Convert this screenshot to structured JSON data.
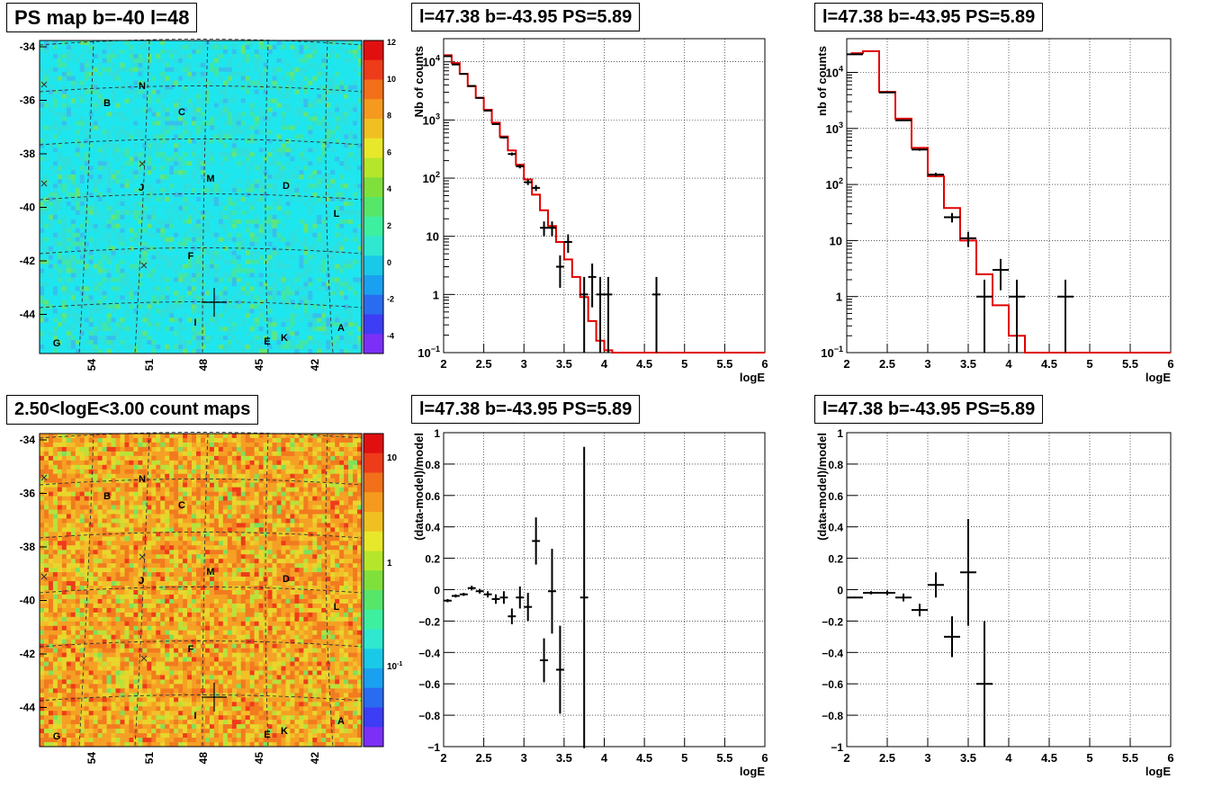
{
  "panels": {
    "ps_map": {
      "title": "PS map b=-40 l=48"
    },
    "count_map": {
      "title": "2.50<logE<3.00 count maps"
    },
    "spec1": {
      "title": "l=47.38 b=-43.95 PS=5.89"
    },
    "spec2": {
      "title": "l=47.38 b=-43.95 PS=5.89"
    },
    "res1": {
      "title": "l=47.38 b=-43.95 PS=5.89"
    },
    "res2": {
      "title": "l=47.38 b=-43.95 PS=5.89"
    }
  },
  "chart_data": [
    {
      "type": "heatmap",
      "id": "ps_map",
      "title": "PS map b=-40 l=48",
      "y_ticks": [
        "-34",
        "-36",
        "-38",
        "-40",
        "-42",
        "-44"
      ],
      "x_ticks": [
        "54",
        "51",
        "48",
        "45",
        "42"
      ],
      "colorbar_ticks": [
        "12",
        "10",
        "8",
        "6",
        "4",
        "2",
        "0",
        "-2",
        "-4"
      ],
      "zlim": [
        -5,
        12
      ],
      "labels": [
        "N",
        "B",
        "C",
        "J",
        "M",
        "D",
        "L",
        "F",
        "I",
        "A",
        "E",
        "K",
        "G"
      ]
    },
    {
      "type": "heatmap",
      "id": "count_map",
      "title": "2.50<logE<3.00 count maps",
      "y_ticks": [
        "-34",
        "-36",
        "-38",
        "-40",
        "-42",
        "-44"
      ],
      "x_ticks": [
        "54",
        "51",
        "48",
        "45",
        "42"
      ],
      "colorbar_ticks": [
        "10",
        "1",
        "10-1"
      ],
      "z_scale": "log",
      "labels": [
        "N",
        "B",
        "C",
        "J",
        "M",
        "D",
        "L",
        "F",
        "I",
        "A",
        "E",
        "K",
        "G"
      ]
    },
    {
      "type": "line",
      "id": "spec1",
      "title": "l=47.38 b=-43.95 PS=5.89",
      "xlabel": "logE",
      "ylabel": "Nb of counts",
      "y_scale": "log",
      "xlim": [
        2,
        6
      ],
      "ylim": [
        0.1,
        25000
      ],
      "x_ticks": [
        "2",
        "2.5",
        "3",
        "3.5",
        "4",
        "4.5",
        "5",
        "5.5",
        "6"
      ],
      "y_ticks": [
        "10−1",
        "1",
        "10",
        "10²",
        "10³",
        "10⁴"
      ],
      "grid": true,
      "model_step": {
        "edges": [
          2,
          2.1,
          2.2,
          2.3,
          2.4,
          2.5,
          2.6,
          2.7,
          2.8,
          2.9,
          3.0,
          3.1,
          3.2,
          3.3,
          3.4,
          3.5,
          3.6,
          3.7,
          3.8,
          3.9,
          4.0,
          4.1,
          4.2,
          6.0
        ],
        "values": [
          13000,
          9500,
          6200,
          3800,
          2400,
          1500,
          900,
          520,
          300,
          170,
          95,
          52,
          28,
          15,
          8,
          4,
          2,
          0.9,
          0.35,
          0.16,
          0.11,
          0.1,
          0.1
        ]
      },
      "points": [
        {
          "x": 2.05,
          "y": 12500,
          "xerr": 0.05,
          "ylo": 12300,
          "yhi": 12700
        },
        {
          "x": 2.15,
          "y": 9000,
          "xerr": 0.05,
          "ylo": 8850,
          "yhi": 9150
        },
        {
          "x": 2.25,
          "y": 6200,
          "xerr": 0.05,
          "ylo": 6100,
          "yhi": 6300
        },
        {
          "x": 2.35,
          "y": 3850,
          "xerr": 0.05,
          "ylo": 3790,
          "yhi": 3910
        },
        {
          "x": 2.45,
          "y": 2400,
          "xerr": 0.05,
          "ylo": 2350,
          "yhi": 2450
        },
        {
          "x": 2.55,
          "y": 1450,
          "xerr": 0.05,
          "ylo": 1410,
          "yhi": 1490
        },
        {
          "x": 2.65,
          "y": 850,
          "xerr": 0.05,
          "ylo": 820,
          "yhi": 880
        },
        {
          "x": 2.75,
          "y": 500,
          "xerr": 0.05,
          "ylo": 478,
          "yhi": 522
        },
        {
          "x": 2.85,
          "y": 260,
          "xerr": 0.05,
          "ylo": 244,
          "yhi": 276
        },
        {
          "x": 2.95,
          "y": 160,
          "xerr": 0.05,
          "ylo": 147,
          "yhi": 173
        },
        {
          "x": 3.05,
          "y": 85,
          "xerr": 0.05,
          "ylo": 76,
          "yhi": 94
        },
        {
          "x": 3.15,
          "y": 68,
          "xerr": 0.05,
          "ylo": 60,
          "yhi": 76
        },
        {
          "x": 3.25,
          "y": 14,
          "xerr": 0.05,
          "ylo": 10,
          "yhi": 18
        },
        {
          "x": 3.35,
          "y": 14,
          "xerr": 0.05,
          "ylo": 10,
          "yhi": 18
        },
        {
          "x": 3.45,
          "y": 3,
          "xerr": 0.05,
          "ylo": 1.3,
          "yhi": 4.7
        },
        {
          "x": 3.55,
          "y": 8,
          "xerr": 0.05,
          "ylo": 5.2,
          "yhi": 10.8
        },
        {
          "x": 3.75,
          "y": 1,
          "xerr": 0.05,
          "ylo": 0.1,
          "yhi": 2
        },
        {
          "x": 3.85,
          "y": 2,
          "xerr": 0.05,
          "ylo": 0.6,
          "yhi": 3.4
        },
        {
          "x": 3.95,
          "y": 1,
          "xerr": 0.05,
          "ylo": 0.1,
          "yhi": 2
        },
        {
          "x": 4.05,
          "y": 1,
          "xerr": 0.05,
          "ylo": 0.1,
          "yhi": 2
        },
        {
          "x": 4.65,
          "y": 1,
          "xerr": 0.05,
          "ylo": 0.1,
          "yhi": 2
        }
      ]
    },
    {
      "type": "line",
      "id": "spec2",
      "title": "l=47.38 b=-43.95 PS=5.89",
      "xlabel": "logE",
      "ylabel": "nb of counts",
      "y_scale": "log",
      "xlim": [
        2,
        6
      ],
      "ylim": [
        0.1,
        40000
      ],
      "x_ticks": [
        "2",
        "2.5",
        "3",
        "3.5",
        "4",
        "4.5",
        "5",
        "5.5",
        "6"
      ],
      "y_ticks": [
        "10−1",
        "1",
        "10",
        "10²",
        "10³",
        "10⁴"
      ],
      "grid": true,
      "model_step": {
        "edges": [
          2.05,
          2.2,
          2.4,
          2.6,
          2.8,
          3.0,
          3.2,
          3.4,
          3.6,
          3.8,
          4.0,
          4.2,
          6.0
        ],
        "values": [
          22000,
          24000,
          4500,
          1500,
          450,
          140,
          38,
          10,
          2.5,
          0.7,
          0.2,
          0.1
        ]
      },
      "points": [
        {
          "x": 2.1,
          "y": 21000,
          "xerr": 0.1,
          "ylo": 20800,
          "yhi": 21200
        },
        {
          "x": 2.5,
          "y": 4400,
          "xerr": 0.1,
          "ylo": 4330,
          "yhi": 4470
        },
        {
          "x": 2.7,
          "y": 1400,
          "xerr": 0.1,
          "ylo": 1360,
          "yhi": 1440
        },
        {
          "x": 2.9,
          "y": 420,
          "xerr": 0.1,
          "ylo": 400,
          "yhi": 440
        },
        {
          "x": 3.1,
          "y": 150,
          "xerr": 0.1,
          "ylo": 138,
          "yhi": 162
        },
        {
          "x": 3.3,
          "y": 26,
          "xerr": 0.1,
          "ylo": 21,
          "yhi": 31
        },
        {
          "x": 3.5,
          "y": 11,
          "xerr": 0.1,
          "ylo": 7.7,
          "yhi": 14.3
        },
        {
          "x": 3.7,
          "y": 1,
          "xerr": 0.1,
          "ylo": 0.1,
          "yhi": 2
        },
        {
          "x": 3.9,
          "y": 3,
          "xerr": 0.1,
          "ylo": 1.3,
          "yhi": 4.7
        },
        {
          "x": 4.1,
          "y": 1,
          "xerr": 0.1,
          "ylo": 0.1,
          "yhi": 2
        },
        {
          "x": 4.7,
          "y": 1,
          "xerr": 0.1,
          "ylo": 0.1,
          "yhi": 2
        }
      ]
    },
    {
      "type": "scatter",
      "id": "res1",
      "title": "l=47.38 b=-43.95 PS=5.89",
      "xlabel": "logE",
      "ylabel": "(data-model)/model",
      "xlim": [
        2,
        6
      ],
      "ylim": [
        -1,
        1
      ],
      "x_ticks": [
        "2",
        "2.5",
        "3",
        "3.5",
        "4",
        "4.5",
        "5",
        "5.5",
        "6"
      ],
      "y_ticks": [
        "−1",
        "−0.8",
        "−0.6",
        "−0.4",
        "−0.2",
        "0",
        "0.2",
        "0.4",
        "0.6",
        "0.8",
        "1"
      ],
      "grid": true,
      "points": [
        {
          "x": 2.05,
          "y": -0.07,
          "xerr": 0.05,
          "yerr": 0.01
        },
        {
          "x": 2.15,
          "y": -0.04,
          "xerr": 0.05,
          "yerr": 0.01
        },
        {
          "x": 2.25,
          "y": -0.03,
          "xerr": 0.05,
          "yerr": 0.01
        },
        {
          "x": 2.35,
          "y": 0.01,
          "xerr": 0.05,
          "yerr": 0.015
        },
        {
          "x": 2.45,
          "y": -0.01,
          "xerr": 0.05,
          "yerr": 0.015
        },
        {
          "x": 2.55,
          "y": -0.03,
          "xerr": 0.05,
          "yerr": 0.02
        },
        {
          "x": 2.65,
          "y": -0.06,
          "xerr": 0.05,
          "yerr": 0.03
        },
        {
          "x": 2.75,
          "y": -0.05,
          "xerr": 0.05,
          "yerr": 0.04
        },
        {
          "x": 2.85,
          "y": -0.17,
          "xerr": 0.05,
          "yerr": 0.05
        },
        {
          "x": 2.95,
          "y": -0.05,
          "xerr": 0.05,
          "yerr": 0.07
        },
        {
          "x": 3.05,
          "y": -0.11,
          "xerr": 0.05,
          "yerr": 0.09
        },
        {
          "x": 3.15,
          "y": 0.31,
          "xerr": 0.05,
          "yerr": 0.15
        },
        {
          "x": 3.25,
          "y": -0.45,
          "xerr": 0.05,
          "yerr": 0.14
        },
        {
          "x": 3.35,
          "y": -0.01,
          "xerr": 0.05,
          "yerr": 0.27
        },
        {
          "x": 3.45,
          "y": -0.51,
          "xerr": 0.05,
          "yerr": 0.28
        },
        {
          "x": 3.75,
          "y": -0.05,
          "xerr": 0.05,
          "yerr": 0.96
        }
      ]
    },
    {
      "type": "scatter",
      "id": "res2",
      "title": "l=47.38 b=-43.95 PS=5.89",
      "xlabel": "logE",
      "ylabel": "(data-model)/model",
      "xlim": [
        2,
        6
      ],
      "ylim": [
        -1,
        1
      ],
      "x_ticks": [
        "2",
        "2.5",
        "3",
        "3.5",
        "4",
        "4.5",
        "5",
        "5.5",
        "6"
      ],
      "y_ticks": [
        "−1",
        "−0.8",
        "−0.6",
        "−0.4",
        "−0.2",
        "0",
        "0.2",
        "0.4",
        "0.6",
        "0.8",
        "1"
      ],
      "grid": true,
      "points": [
        {
          "x": 2.1,
          "y": -0.05,
          "xerr": 0.1,
          "yerr": 0.005
        },
        {
          "x": 2.3,
          "y": -0.02,
          "xerr": 0.1,
          "yerr": 0.01
        },
        {
          "x": 2.5,
          "y": -0.02,
          "xerr": 0.1,
          "yerr": 0.015
        },
        {
          "x": 2.7,
          "y": -0.05,
          "xerr": 0.1,
          "yerr": 0.025
        },
        {
          "x": 2.9,
          "y": -0.13,
          "xerr": 0.1,
          "yerr": 0.04
        },
        {
          "x": 3.1,
          "y": 0.03,
          "xerr": 0.1,
          "yerr": 0.08
        },
        {
          "x": 3.3,
          "y": -0.3,
          "xerr": 0.1,
          "yerr": 0.13
        },
        {
          "x": 3.5,
          "y": 0.11,
          "xerr": 0.1,
          "yerr": 0.34
        },
        {
          "x": 3.7,
          "y": -0.6,
          "xerr": 0.1,
          "yerr": 0.4
        }
      ]
    }
  ]
}
